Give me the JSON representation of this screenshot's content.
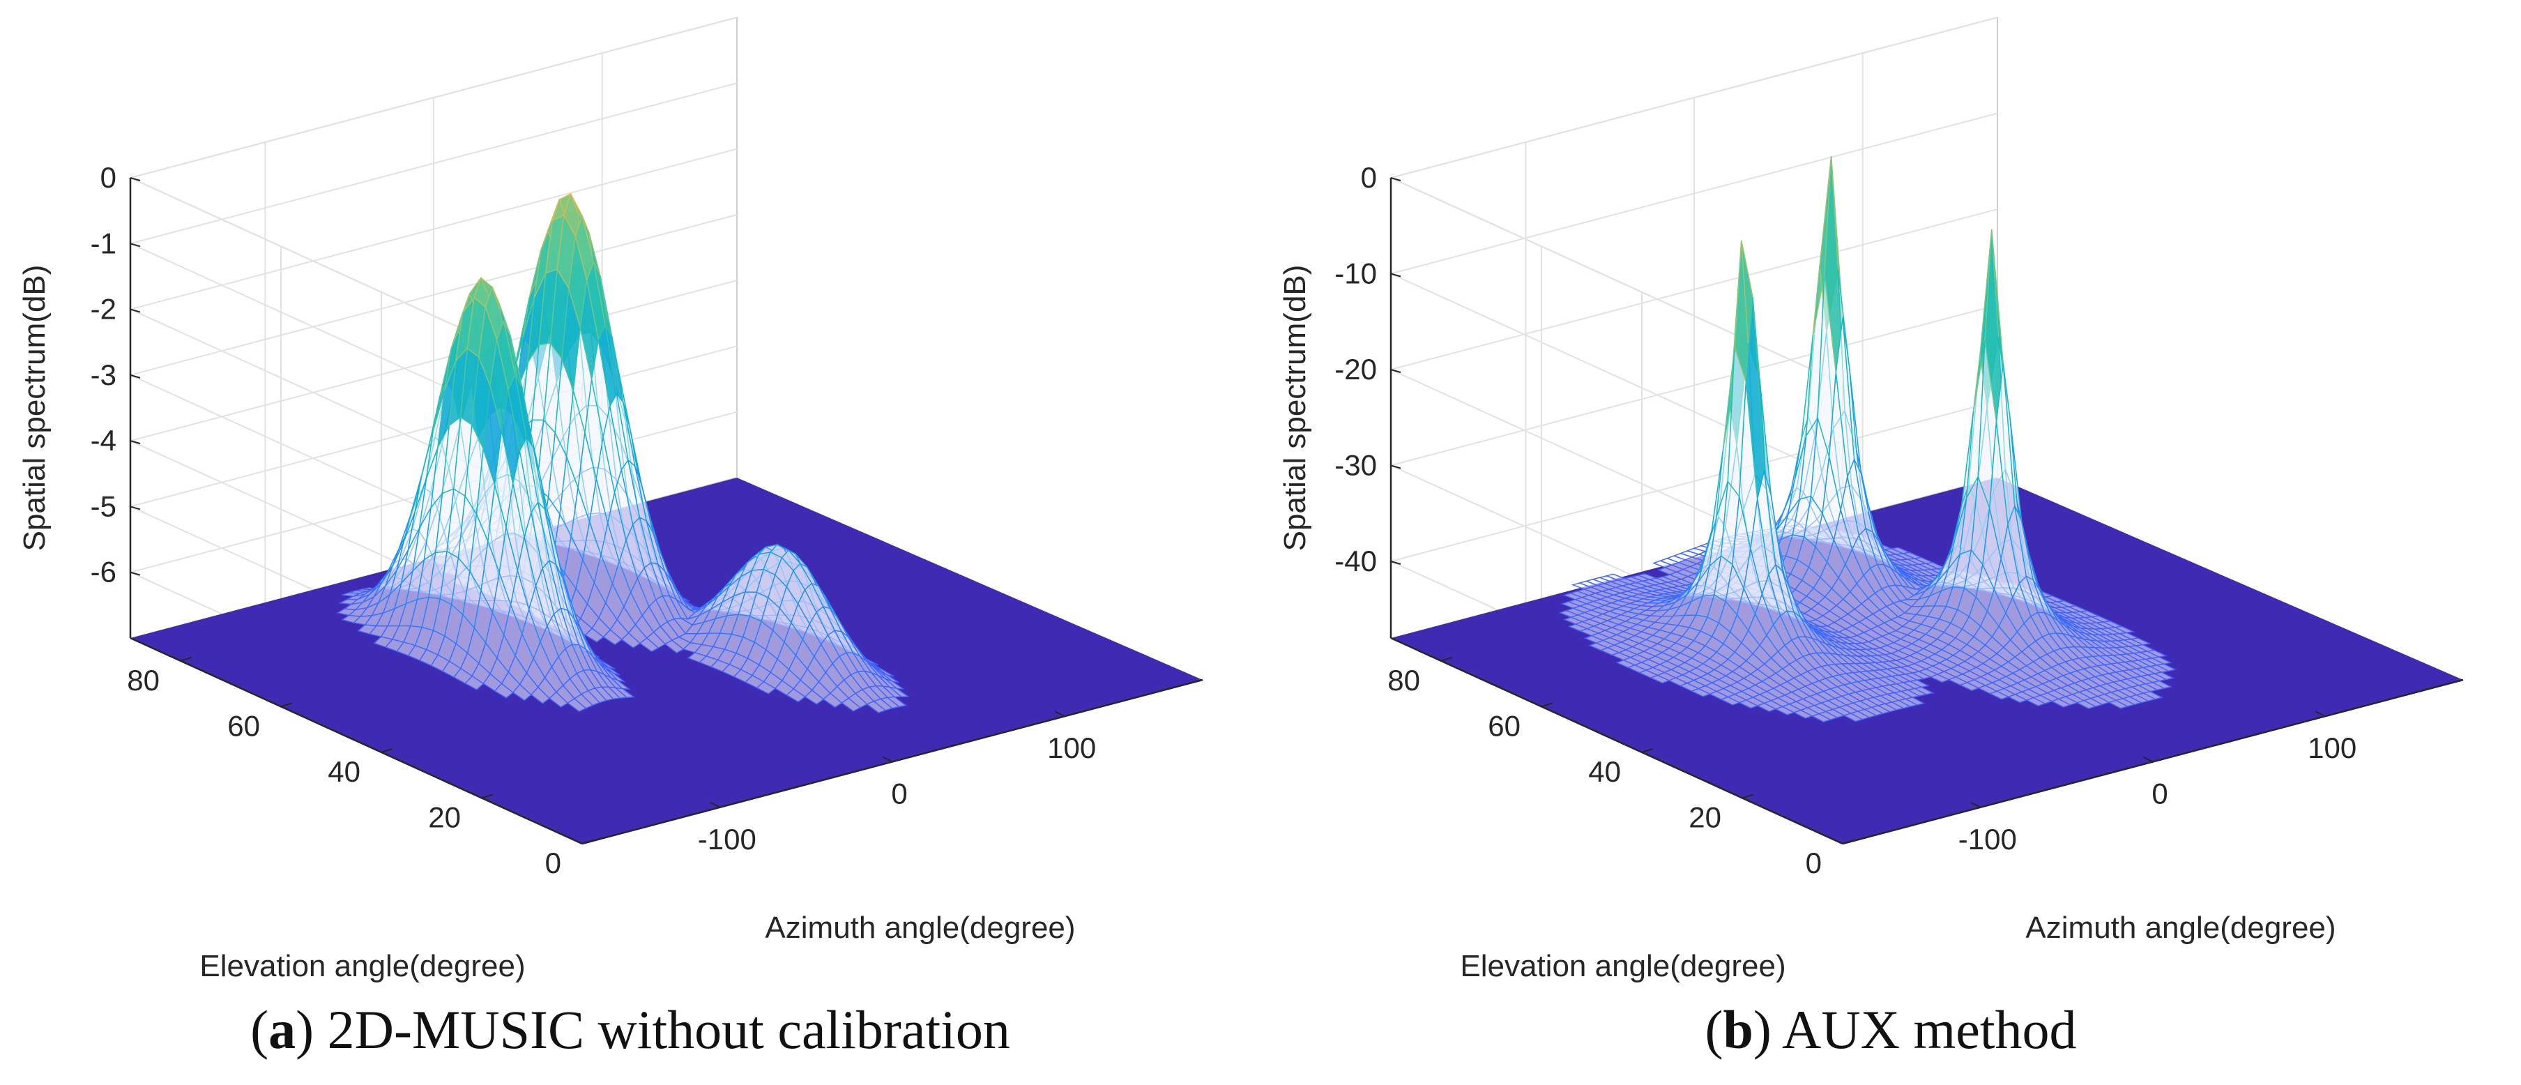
{
  "chart_data": [
    {
      "type": "surface3d",
      "panel_letter": "a",
      "caption": "2D-MUSIC without calibration",
      "zlabel": "Spatial spectrum(dB)",
      "xlabel": "Azimuth angle(degree)",
      "ylabel": "Elevation angle(degree)",
      "zticks": [
        "0",
        "-1",
        "-2",
        "-3",
        "-4",
        "-5",
        "-6"
      ],
      "zlim": [
        -7,
        0
      ],
      "xticks": [
        "-100",
        "0",
        "100"
      ],
      "xlim": [
        -180,
        180
      ],
      "yticks": [
        "0",
        "20",
        "40",
        "60",
        "80"
      ],
      "ylim": [
        0,
        90
      ],
      "peaks": [
        {
          "azimuth": -60,
          "elevation": 60,
          "value_db": -1.3,
          "width": "broad"
        },
        {
          "azimuth": 20,
          "elevation": 70,
          "value_db": -0.9,
          "width": "broad"
        },
        {
          "azimuth": 40,
          "elevation": 35,
          "value_db": -5.2,
          "width": "broad"
        }
      ],
      "colormap": "parula"
    },
    {
      "type": "surface3d",
      "panel_letter": "b",
      "caption": "AUX method",
      "zlabel": "Spatial spectrum(dB)",
      "xlabel": "Azimuth angle(degree)",
      "ylabel": "Elevation angle(degree)",
      "zticks": [
        "0",
        "-10",
        "-20",
        "-30",
        "-40"
      ],
      "zlim": [
        -48,
        0
      ],
      "xticks": [
        "-100",
        "0",
        "100"
      ],
      "xlim": [
        -180,
        180
      ],
      "yticks": [
        "0",
        "20",
        "40",
        "60",
        "80"
      ],
      "ylim": [
        0,
        90
      ],
      "peaks": [
        {
          "azimuth": -60,
          "elevation": 60,
          "value_db": -3,
          "width": "sharp"
        },
        {
          "azimuth": 20,
          "elevation": 70,
          "value_db": -2,
          "width": "sharp"
        },
        {
          "azimuth": 40,
          "elevation": 45,
          "value_db": -5,
          "width": "sharp"
        }
      ],
      "colormap": "parula"
    }
  ]
}
